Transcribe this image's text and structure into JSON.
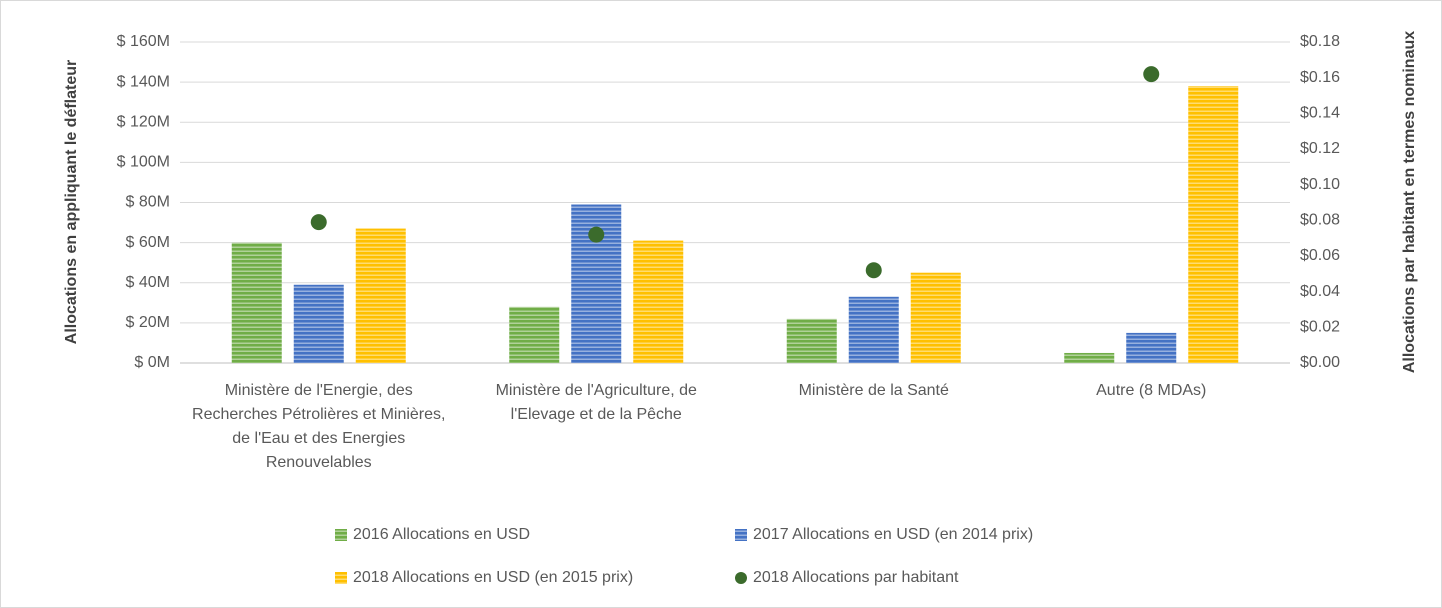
{
  "chart_data": {
    "type": "bar",
    "ylabel": "Allocations en appliquant le déflateur",
    "y2label": "Allocations par habitant en termes nominaux",
    "categories": [
      "Ministère de l'Energie, des Recherches Pétrolières et Minières, de l'Eau et des Energies Renouvelables",
      "Ministère de l'Agriculture, de l'Elevage et de la Pêche",
      "Ministère de la Santé",
      "Autre (8 MDAs)"
    ],
    "series": [
      {
        "name": "2016 Allocations en USD",
        "color": "#70ad47",
        "values": [
          60,
          28,
          22,
          5
        ]
      },
      {
        "name": "2017 Allocations en USD (en 2014 prix)",
        "color": "#4472c4",
        "values": [
          39,
          79,
          33,
          15
        ]
      },
      {
        "name": "2018 Allocations en USD (en 2015 prix)",
        "color": "#ffc000",
        "values": [
          67,
          61,
          45,
          138
        ]
      },
      {
        "name": "2018 Allocations par habitant",
        "color": "#3b6b2c",
        "type": "scatter",
        "axis": "y2",
        "values": [
          0.079,
          0.072,
          0.052,
          0.162
        ]
      }
    ],
    "ylim": [
      0,
      160
    ],
    "yticks": [
      {
        "value": 0,
        "label": "$ 0M"
      },
      {
        "value": 20,
        "label": "$ 20M"
      },
      {
        "value": 40,
        "label": "$ 40M"
      },
      {
        "value": 60,
        "label": "$ 60M"
      },
      {
        "value": 80,
        "label": "$ 80M"
      },
      {
        "value": 100,
        "label": "$ 100M"
      },
      {
        "value": 120,
        "label": "$ 120M"
      },
      {
        "value": 140,
        "label": "$ 140M"
      },
      {
        "value": 160,
        "label": "$ 160M"
      }
    ],
    "y2lim": [
      0,
      0.18
    ],
    "y2ticks": [
      {
        "value": 0,
        "label": "$0.00"
      },
      {
        "value": 0.02,
        "label": "$0.02"
      },
      {
        "value": 0.04,
        "label": "$0.04"
      },
      {
        "value": 0.06,
        "label": "$0.06"
      },
      {
        "value": 0.08,
        "label": "$0.08"
      },
      {
        "value": 0.1,
        "label": "$0.10"
      },
      {
        "value": 0.12,
        "label": "$0.12"
      },
      {
        "value": 0.14,
        "label": "$0.14"
      },
      {
        "value": 0.16,
        "label": "$0.16"
      },
      {
        "value": 0.18,
        "label": "$0.18"
      }
    ],
    "grid": true,
    "legend": "bottom"
  }
}
